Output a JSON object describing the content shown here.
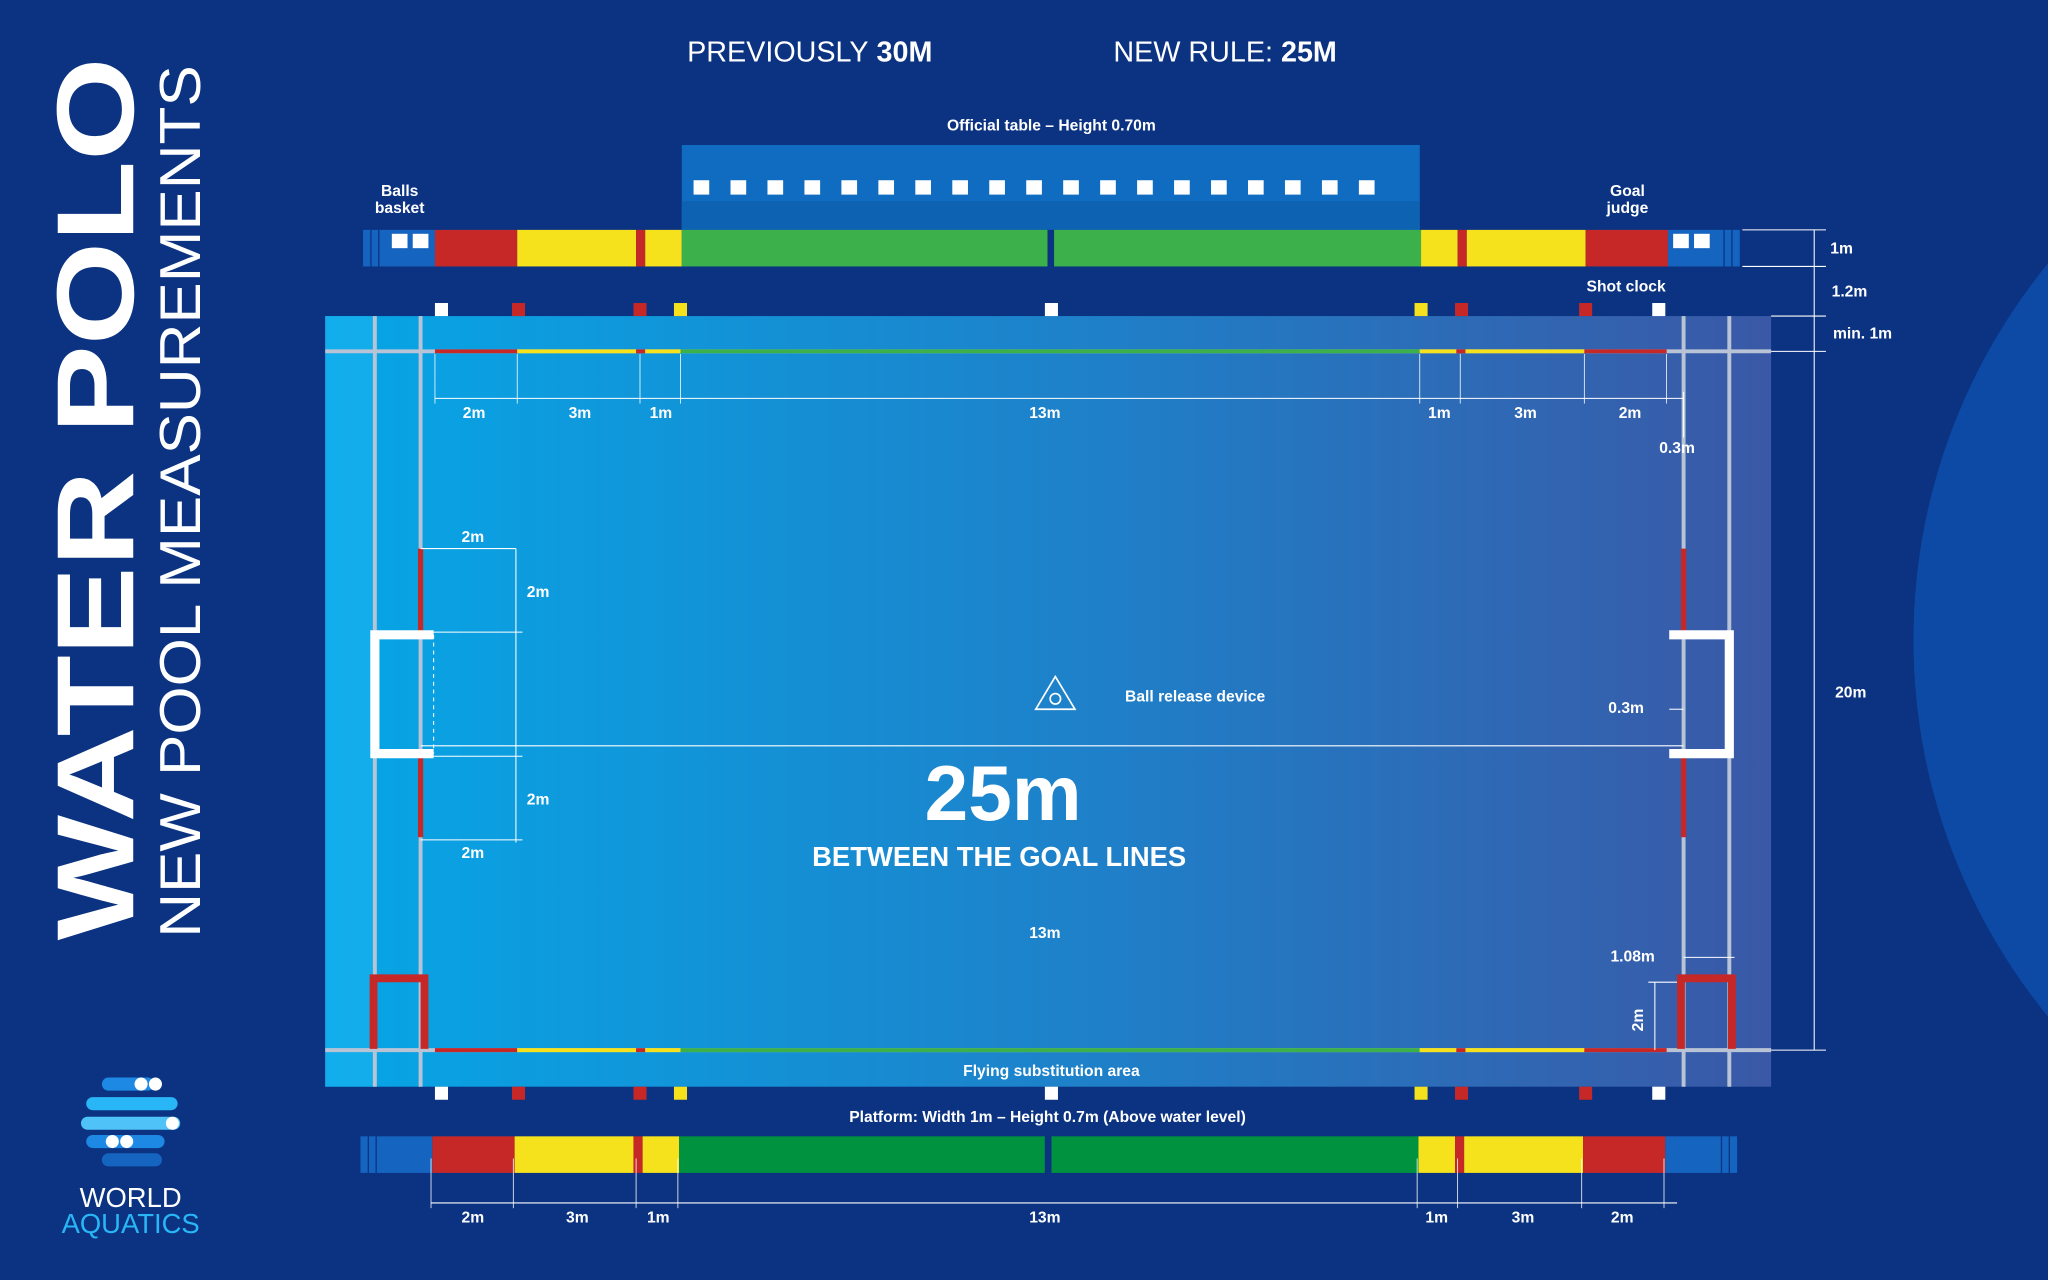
{
  "header": {
    "previously": "PREVIOUSLY",
    "previous_length": "30M",
    "new_rule": "NEW RULE:",
    "new_length": "25M"
  },
  "sidebar": {
    "title": "WATER POLO",
    "subtitle": "NEW POOL MEASUREMENTS"
  },
  "logo": {
    "line1": "WORLD",
    "line2": "AQUATICS"
  },
  "labels": {
    "official_table": "Official table – Height 0.70m",
    "balls_basket": [
      "Balls",
      "basket"
    ],
    "goal_judge": [
      "Goal",
      "judge"
    ],
    "shot_clock": "Shot clock",
    "ball_release": "Ball release device",
    "flying_substitution": "Flying substitution area",
    "platform": "Platform: Width 1m – Height 0.7m (Above water level)"
  },
  "center": {
    "length": "25m",
    "caption": "BETWEEN THE GOAL LINES",
    "width_label": "13m"
  },
  "top_dimensions": [
    "2m",
    "3m",
    "1m",
    "13m",
    "1m",
    "3m",
    "2m"
  ],
  "bottom_dimensions": [
    "2m",
    "3m",
    "1m",
    "13m",
    "1m",
    "3m",
    "2m"
  ],
  "right_dimensions": {
    "platform": "1m",
    "gap": "1.2m",
    "deck": "min. 1m",
    "width": "20m"
  },
  "goal_dimensions": {
    "left_top_width": "2m",
    "left_top_height": "2m",
    "left_bottom_height": "2m",
    "left_bottom_width": "2m",
    "lane_offset": "0.3m",
    "goal_depth": "0.3m",
    "reentry_width": "1.08m",
    "reentry_height": "2m"
  }
}
